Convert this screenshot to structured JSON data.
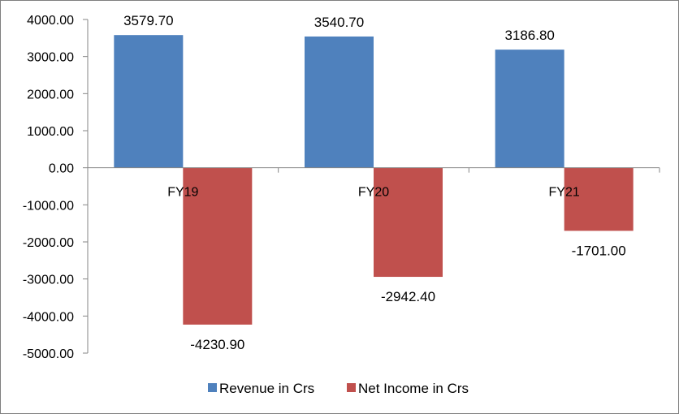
{
  "chart_data": {
    "type": "bar",
    "categories": [
      "FY19",
      "FY20",
      "FY21"
    ],
    "series": [
      {
        "name": "Revenue in Crs",
        "values": [
          3579.7,
          3540.7,
          3186.8
        ],
        "labels": [
          "3579.70",
          "3540.70",
          "3186.80"
        ],
        "color": "#4F81BD"
      },
      {
        "name": "Net Income in Crs",
        "values": [
          -4230.9,
          -2942.4,
          -1701.0
        ],
        "labels": [
          "-4230.90",
          "-2942.40",
          "-1701.00"
        ],
        "color": "#C0504D"
      }
    ],
    "ylim": [
      -5000,
      4000
    ],
    "yticks": [
      4000,
      3000,
      2000,
      1000,
      0,
      -1000,
      -2000,
      -3000,
      -4000,
      -5000
    ],
    "ytick_labels": [
      "4000.00",
      "3000.00",
      "2000.00",
      "1000.00",
      "0.00",
      "-1000.00",
      "-2000.00",
      "-3000.00",
      "-4000.00",
      "-5000.00"
    ],
    "grid": false,
    "legend_position": "bottom"
  }
}
